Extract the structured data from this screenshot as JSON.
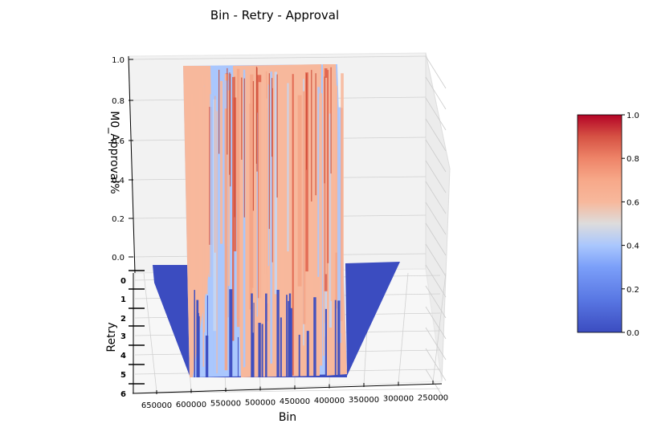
{
  "chart_data": {
    "type": "surface3d",
    "title": "Bin - Retry - Approval",
    "xlabel": "Bin",
    "ylabel": "Retry",
    "zlabel": "M0_Approval%",
    "x_ticks": [
      "650000",
      "600000",
      "550000",
      "500000",
      "450000",
      "400000",
      "350000",
      "300000",
      "250000"
    ],
    "y_ticks": [
      "0",
      "1",
      "2",
      "3",
      "4",
      "5",
      "6"
    ],
    "z_ticks": [
      "0.0",
      "0.2",
      "0.4",
      "0.6",
      "0.8",
      "1.0"
    ],
    "xlim": [
      250000,
      670000
    ],
    "ylim": [
      0,
      6
    ],
    "zlim": [
      0,
      1
    ],
    "colormap": "coolwarm",
    "colorbar_ticks": [
      "0.0",
      "0.2",
      "0.4",
      "0.6",
      "0.8",
      "1.0"
    ],
    "colorbar_range": [
      0,
      1
    ],
    "grid": true,
    "surface_summary": {
      "bin_range": [
        380000,
        610000
      ],
      "approval_range": [
        0,
        1
      ],
      "dominant_values": [
        0.0,
        0.35,
        0.65,
        0.9
      ]
    }
  }
}
